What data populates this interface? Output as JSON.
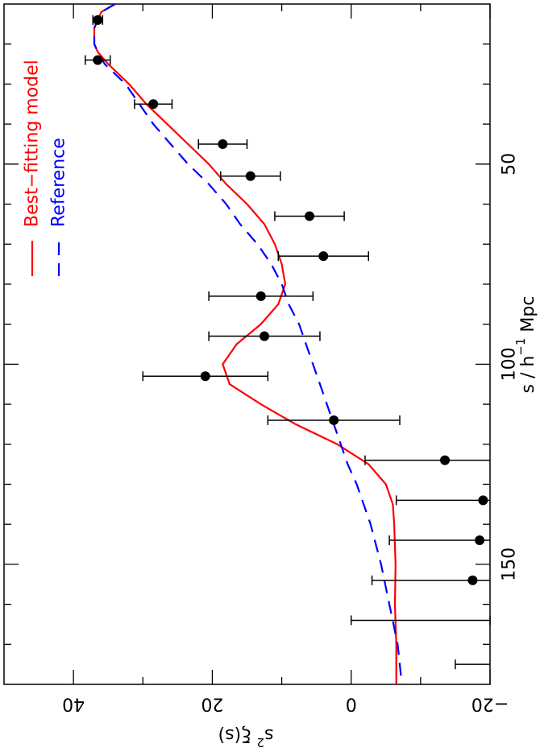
{
  "chart_data": {
    "type": "scatter",
    "orientation": "rotated-90-clockwise",
    "xlabel": {
      "prefix": "s / h",
      "sup": "−1",
      "suffix": " Mpc"
    },
    "ylabel": {
      "prefix": "s",
      "sup": "2",
      "suffix": " ξ(s)"
    },
    "xlim": [
      10,
      180
    ],
    "ylim": [
      -20,
      50
    ],
    "x_ticks_major": [
      50,
      100,
      150
    ],
    "x_ticks_minor": [
      20,
      30,
      40,
      60,
      70,
      80,
      90,
      110,
      120,
      130,
      140,
      160,
      170
    ],
    "y_ticks_major": [
      40,
      20,
      0,
      -20
    ],
    "y_ticks_major_labels": [
      "40",
      "20",
      "0",
      "−20"
    ],
    "y_ticks_minor": [
      30,
      10,
      -10
    ],
    "legend": {
      "placement": "top-left",
      "entries": [
        {
          "name": "Best−fitting model",
          "color": "#ff0000",
          "style": "solid"
        },
        {
          "name": "Reference",
          "color": "#0000ff",
          "style": "dashed"
        }
      ]
    },
    "points": {
      "color": "#000000",
      "x": [
        14,
        24,
        35,
        45,
        53,
        63,
        73,
        83,
        93,
        103,
        114,
        124,
        134,
        144,
        154
      ],
      "y": [
        36.5,
        36.5,
        28.5,
        18.5,
        14.5,
        6,
        4,
        13,
        12.5,
        21,
        2.5,
        -13.5,
        -19,
        -18.5,
        -17.5
      ],
      "err": [
        0.7,
        1.8,
        2.7,
        3.5,
        4.3,
        5,
        6.5,
        7.5,
        8,
        9,
        9.5,
        11.5,
        12.5,
        13,
        14.5
      ]
    },
    "error_bars_no_point": [
      {
        "x": 164,
        "y": -10,
        "err": 10
      },
      {
        "x": 175,
        "y": -19,
        "err": 4
      }
    ],
    "series": [
      {
        "name": "Best−fitting model",
        "color": "#ff0000",
        "style": "solid",
        "x": [
          10,
          12,
          14,
          16,
          18,
          20,
          22,
          25,
          30,
          35,
          40,
          45,
          50,
          55,
          60,
          65,
          70,
          75,
          80,
          85,
          90,
          95,
          100,
          105,
          110,
          115,
          120,
          125,
          130,
          135,
          140,
          150,
          160,
          170,
          180
        ],
        "y": [
          34,
          36,
          36.5,
          37,
          37,
          37,
          36.5,
          35,
          32,
          29.5,
          26.5,
          23.5,
          20.5,
          18,
          15,
          12.5,
          11,
          10,
          9.5,
          10.5,
          13,
          16.5,
          18.5,
          17.5,
          13,
          8,
          2,
          -2.5,
          -5,
          -6,
          -6.2,
          -6.4,
          -6.3,
          -6.5,
          -6.5
        ]
      },
      {
        "name": "Reference",
        "color": "#0000ff",
        "style": "dashed",
        "x": [
          10,
          12,
          14,
          16,
          18,
          20,
          22,
          25,
          30,
          35,
          40,
          45,
          50,
          55,
          60,
          65,
          70,
          75,
          80,
          85,
          90,
          95,
          100,
          105,
          110,
          115,
          120,
          125,
          130,
          135,
          140,
          150,
          160,
          170,
          180
        ],
        "y": [
          34,
          36,
          36.5,
          37,
          37,
          37,
          36.5,
          35.5,
          32.5,
          30.5,
          28.5,
          26,
          23.5,
          20.5,
          18,
          16,
          13.5,
          11.5,
          10,
          9,
          7.5,
          6.5,
          5.5,
          4.5,
          3.5,
          2.5,
          1.5,
          0.5,
          -0.8,
          -1.8,
          -2.8,
          -4.3,
          -5.5,
          -6.7,
          -7.3
        ]
      }
    ]
  }
}
